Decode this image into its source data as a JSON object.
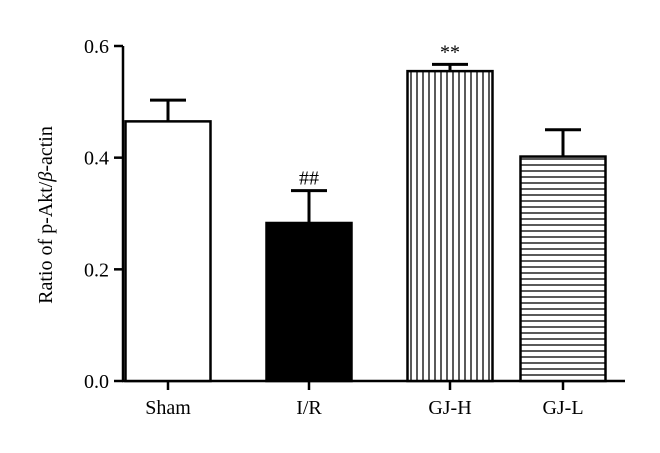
{
  "chart_data": {
    "type": "bar",
    "title": "",
    "xlabel": "",
    "ylabel": "Ratio of p-Akt/β-actin",
    "ylabel_parts": [
      "Ratio of p-Akt/",
      "β",
      "-actin"
    ],
    "categories": [
      "Sham",
      "I/R",
      "GJ-H",
      "GJ-L"
    ],
    "values": [
      0.465,
      0.283,
      0.555,
      0.402
    ],
    "errors": [
      0.038,
      0.058,
      0.012,
      0.048
    ],
    "annotations": [
      "",
      "##",
      "**",
      ""
    ],
    "fills": [
      "white",
      "black",
      "vertical-stripes",
      "horizontal-stripes"
    ],
    "ylim": [
      0,
      0.6
    ],
    "yticks": [
      "0.0",
      "0.2",
      "0.4",
      "0.6"
    ],
    "ytick_values": [
      0,
      0.2,
      0.4,
      0.6
    ],
    "grid": false,
    "legend": "none"
  }
}
